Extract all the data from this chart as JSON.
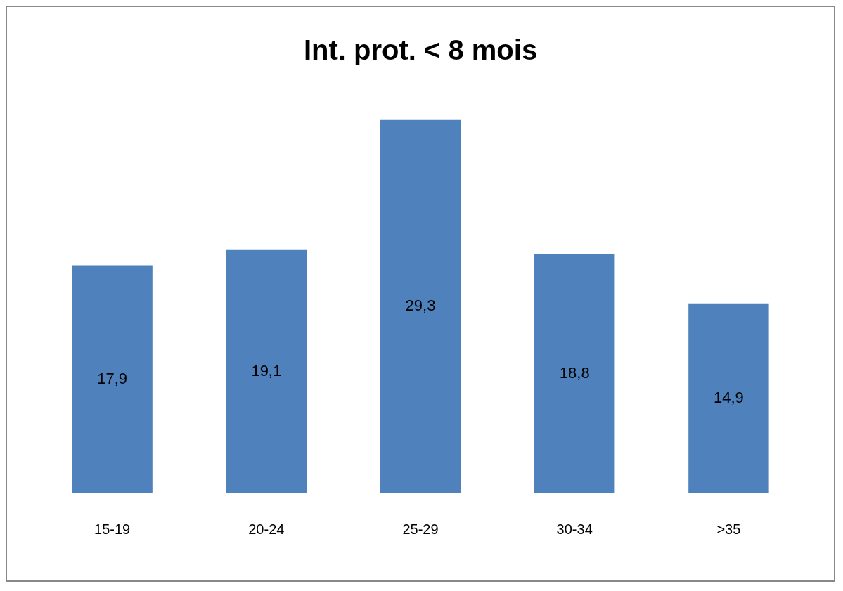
{
  "chart_data": {
    "type": "bar",
    "title": "Int. prot. < 8 mois",
    "categories": [
      "15-19",
      "20-24",
      "25-29",
      "30-34",
      ">35"
    ],
    "values": [
      17.9,
      19.1,
      29.3,
      18.8,
      14.9
    ],
    "value_labels": [
      "17,9",
      "19,1",
      "29,3",
      "18,8",
      "14,9"
    ],
    "color": "#4f81bd",
    "grid": false,
    "legend": false
  }
}
